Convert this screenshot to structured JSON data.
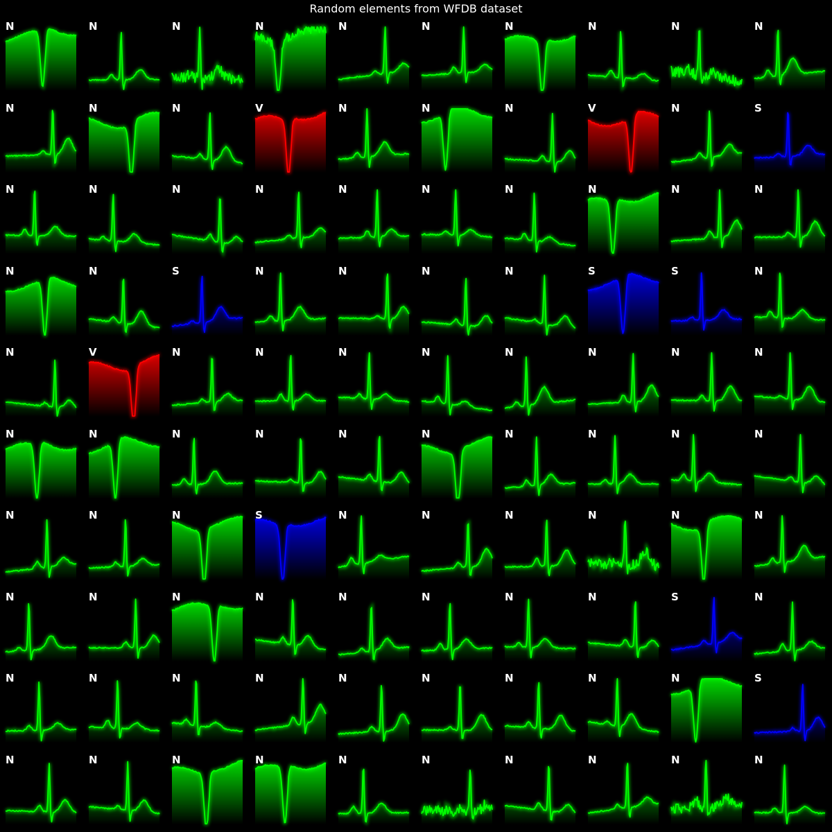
{
  "title": "Random elements from WFDB dataset",
  "colors": {
    "N": "#00ff00",
    "V": "#ff0000",
    "S": "#0000ff"
  },
  "chart_data": {
    "type": "line",
    "title": "Random elements from WFDB dataset",
    "layout": {
      "rows": 10,
      "cols": 10
    },
    "classes": [
      "N",
      "V",
      "S"
    ],
    "cells": [
      {
        "label": "N",
        "shape": "wide"
      },
      {
        "label": "N",
        "shape": "narrow"
      },
      {
        "label": "N",
        "shape": "noisy_narrow"
      },
      {
        "label": "N",
        "shape": "noisy_wide"
      },
      {
        "label": "N",
        "shape": "narrow"
      },
      {
        "label": "N",
        "shape": "narrow"
      },
      {
        "label": "N",
        "shape": "wide"
      },
      {
        "label": "N",
        "shape": "narrow"
      },
      {
        "label": "N",
        "shape": "noisy_narrow"
      },
      {
        "label": "N",
        "shape": "narrow"
      },
      {
        "label": "N",
        "shape": "narrow"
      },
      {
        "label": "N",
        "shape": "wide"
      },
      {
        "label": "N",
        "shape": "narrow"
      },
      {
        "label": "V",
        "shape": "wide"
      },
      {
        "label": "N",
        "shape": "narrow"
      },
      {
        "label": "N",
        "shape": "wide"
      },
      {
        "label": "N",
        "shape": "narrow"
      },
      {
        "label": "V",
        "shape": "wide"
      },
      {
        "label": "N",
        "shape": "narrow"
      },
      {
        "label": "S",
        "shape": "narrow"
      },
      {
        "label": "N",
        "shape": "narrow"
      },
      {
        "label": "N",
        "shape": "narrow"
      },
      {
        "label": "N",
        "shape": "narrow"
      },
      {
        "label": "N",
        "shape": "narrow"
      },
      {
        "label": "N",
        "shape": "narrow"
      },
      {
        "label": "N",
        "shape": "narrow"
      },
      {
        "label": "N",
        "shape": "narrow"
      },
      {
        "label": "N",
        "shape": "wide"
      },
      {
        "label": "N",
        "shape": "narrow"
      },
      {
        "label": "N",
        "shape": "narrow"
      },
      {
        "label": "N",
        "shape": "wide"
      },
      {
        "label": "N",
        "shape": "narrow"
      },
      {
        "label": "S",
        "shape": "narrow"
      },
      {
        "label": "N",
        "shape": "narrow"
      },
      {
        "label": "N",
        "shape": "narrow"
      },
      {
        "label": "N",
        "shape": "narrow"
      },
      {
        "label": "N",
        "shape": "narrow"
      },
      {
        "label": "S",
        "shape": "wide"
      },
      {
        "label": "S",
        "shape": "narrow"
      },
      {
        "label": "N",
        "shape": "narrow"
      },
      {
        "label": "N",
        "shape": "narrow"
      },
      {
        "label": "V",
        "shape": "wide"
      },
      {
        "label": "N",
        "shape": "narrow"
      },
      {
        "label": "N",
        "shape": "narrow"
      },
      {
        "label": "N",
        "shape": "narrow"
      },
      {
        "label": "N",
        "shape": "narrow"
      },
      {
        "label": "N",
        "shape": "narrow"
      },
      {
        "label": "N",
        "shape": "narrow"
      },
      {
        "label": "N",
        "shape": "narrow"
      },
      {
        "label": "N",
        "shape": "narrow"
      },
      {
        "label": "N",
        "shape": "wide"
      },
      {
        "label": "N",
        "shape": "wide"
      },
      {
        "label": "N",
        "shape": "narrow"
      },
      {
        "label": "N",
        "shape": "narrow"
      },
      {
        "label": "N",
        "shape": "narrow"
      },
      {
        "label": "N",
        "shape": "wide"
      },
      {
        "label": "N",
        "shape": "narrow"
      },
      {
        "label": "N",
        "shape": "narrow"
      },
      {
        "label": "N",
        "shape": "narrow"
      },
      {
        "label": "N",
        "shape": "narrow"
      },
      {
        "label": "N",
        "shape": "narrow"
      },
      {
        "label": "N",
        "shape": "narrow"
      },
      {
        "label": "N",
        "shape": "wide"
      },
      {
        "label": "S",
        "shape": "wide"
      },
      {
        "label": "N",
        "shape": "narrow"
      },
      {
        "label": "N",
        "shape": "narrow"
      },
      {
        "label": "N",
        "shape": "narrow"
      },
      {
        "label": "N",
        "shape": "noisy_narrow"
      },
      {
        "label": "N",
        "shape": "wide"
      },
      {
        "label": "N",
        "shape": "narrow"
      },
      {
        "label": "N",
        "shape": "narrow"
      },
      {
        "label": "N",
        "shape": "narrow"
      },
      {
        "label": "N",
        "shape": "wide"
      },
      {
        "label": "N",
        "shape": "narrow"
      },
      {
        "label": "N",
        "shape": "narrow"
      },
      {
        "label": "N",
        "shape": "narrow"
      },
      {
        "label": "N",
        "shape": "narrow"
      },
      {
        "label": "N",
        "shape": "narrow"
      },
      {
        "label": "S",
        "shape": "narrow"
      },
      {
        "label": "N",
        "shape": "narrow"
      },
      {
        "label": "N",
        "shape": "narrow"
      },
      {
        "label": "N",
        "shape": "narrow"
      },
      {
        "label": "N",
        "shape": "narrow"
      },
      {
        "label": "N",
        "shape": "narrow"
      },
      {
        "label": "N",
        "shape": "narrow"
      },
      {
        "label": "N",
        "shape": "narrow"
      },
      {
        "label": "N",
        "shape": "narrow"
      },
      {
        "label": "N",
        "shape": "narrow"
      },
      {
        "label": "N",
        "shape": "wide"
      },
      {
        "label": "S",
        "shape": "narrow"
      },
      {
        "label": "N",
        "shape": "narrow"
      },
      {
        "label": "N",
        "shape": "narrow"
      },
      {
        "label": "N",
        "shape": "wide"
      },
      {
        "label": "N",
        "shape": "wide"
      },
      {
        "label": "N",
        "shape": "narrow"
      },
      {
        "label": "N",
        "shape": "noisy_narrow"
      },
      {
        "label": "N",
        "shape": "narrow"
      },
      {
        "label": "N",
        "shape": "narrow"
      },
      {
        "label": "N",
        "shape": "noisy_narrow"
      },
      {
        "label": "N",
        "shape": "narrow"
      }
    ]
  }
}
